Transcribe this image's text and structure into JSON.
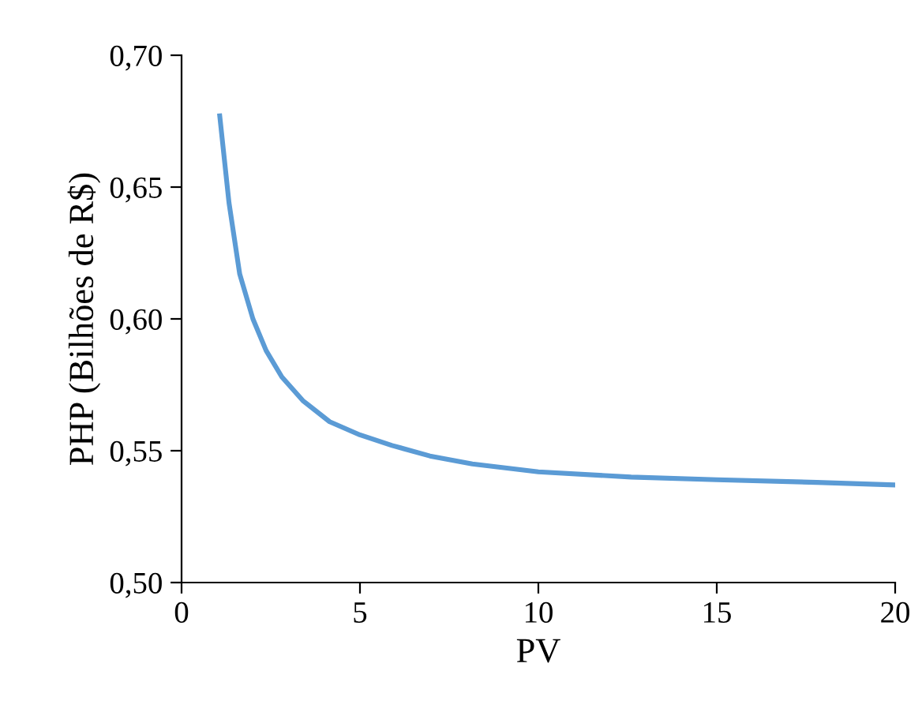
{
  "chart_data": {
    "type": "line",
    "xlabel": "PV",
    "ylabel": "PHP (Bilhões de R$)",
    "series": [
      {
        "color": "#5b9bd5",
        "x": [
          1.07,
          1.33,
          1.63,
          2.0,
          2.37,
          2.81,
          3.4,
          4.15,
          5.0,
          5.9,
          6.96,
          8.15,
          10,
          12.6,
          15,
          17.8,
          20
        ],
        "values": [
          0.677,
          0.644,
          0.617,
          0.6,
          0.588,
          0.578,
          0.569,
          0.561,
          0.556,
          0.552,
          0.548,
          0.545,
          0.542,
          0.54,
          0.539,
          0.538,
          0.537
        ]
      }
    ],
    "xlim": [
      0,
      20
    ],
    "xticks": [
      0,
      5,
      10,
      15,
      20
    ],
    "ylim": [
      0.5,
      0.7
    ],
    "yticks": [
      {
        "value": 0.5,
        "label": "0,50"
      },
      {
        "value": 0.55,
        "label": "0,55"
      },
      {
        "value": 0.6,
        "label": "0,60"
      },
      {
        "value": 0.65,
        "label": "0,65"
      },
      {
        "value": 0.7,
        "label": "0,70"
      }
    ],
    "grid": false,
    "legend": false,
    "marker": "none",
    "line_style": "solid"
  }
}
